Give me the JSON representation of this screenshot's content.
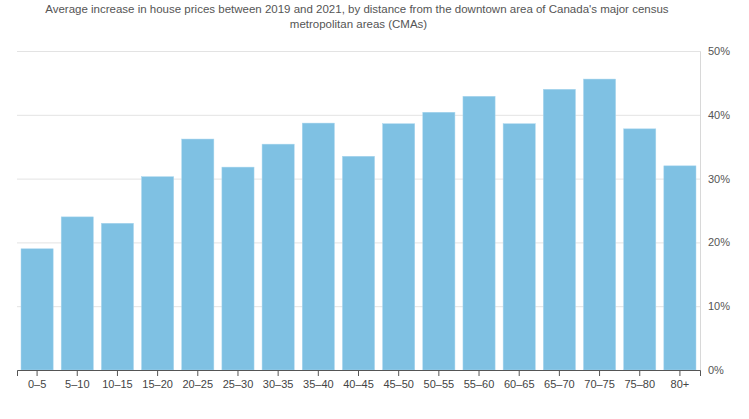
{
  "chart_data": {
    "type": "bar",
    "title": "Average increase in house prices between 2019 and 2021, by distance from the downtown area of Canada's major census metropolitan areas (CMAs)",
    "categories": [
      "0–5",
      "5–10",
      "10–15",
      "15–20",
      "20–25",
      "25–30",
      "30–35",
      "35–40",
      "40–45",
      "45–50",
      "50–55",
      "55–60",
      "60–65",
      "65–70",
      "70–75",
      "75–80",
      "80+"
    ],
    "values": [
      19.0,
      24.0,
      23.0,
      30.3,
      36.2,
      31.8,
      35.4,
      38.7,
      33.5,
      38.6,
      40.4,
      42.9,
      38.6,
      44.0,
      45.6,
      37.8,
      32.0
    ],
    "color": "#7fc1e3",
    "ylim": [
      0,
      50
    ],
    "yticks": [
      {
        "value": 0,
        "label": "0%"
      },
      {
        "value": 10,
        "label": "10%"
      },
      {
        "value": 20,
        "label": "20%"
      },
      {
        "value": 30,
        "label": "30%"
      },
      {
        "value": 40,
        "label": "40%"
      },
      {
        "value": 50,
        "label": "50%"
      }
    ],
    "grid": true
  }
}
